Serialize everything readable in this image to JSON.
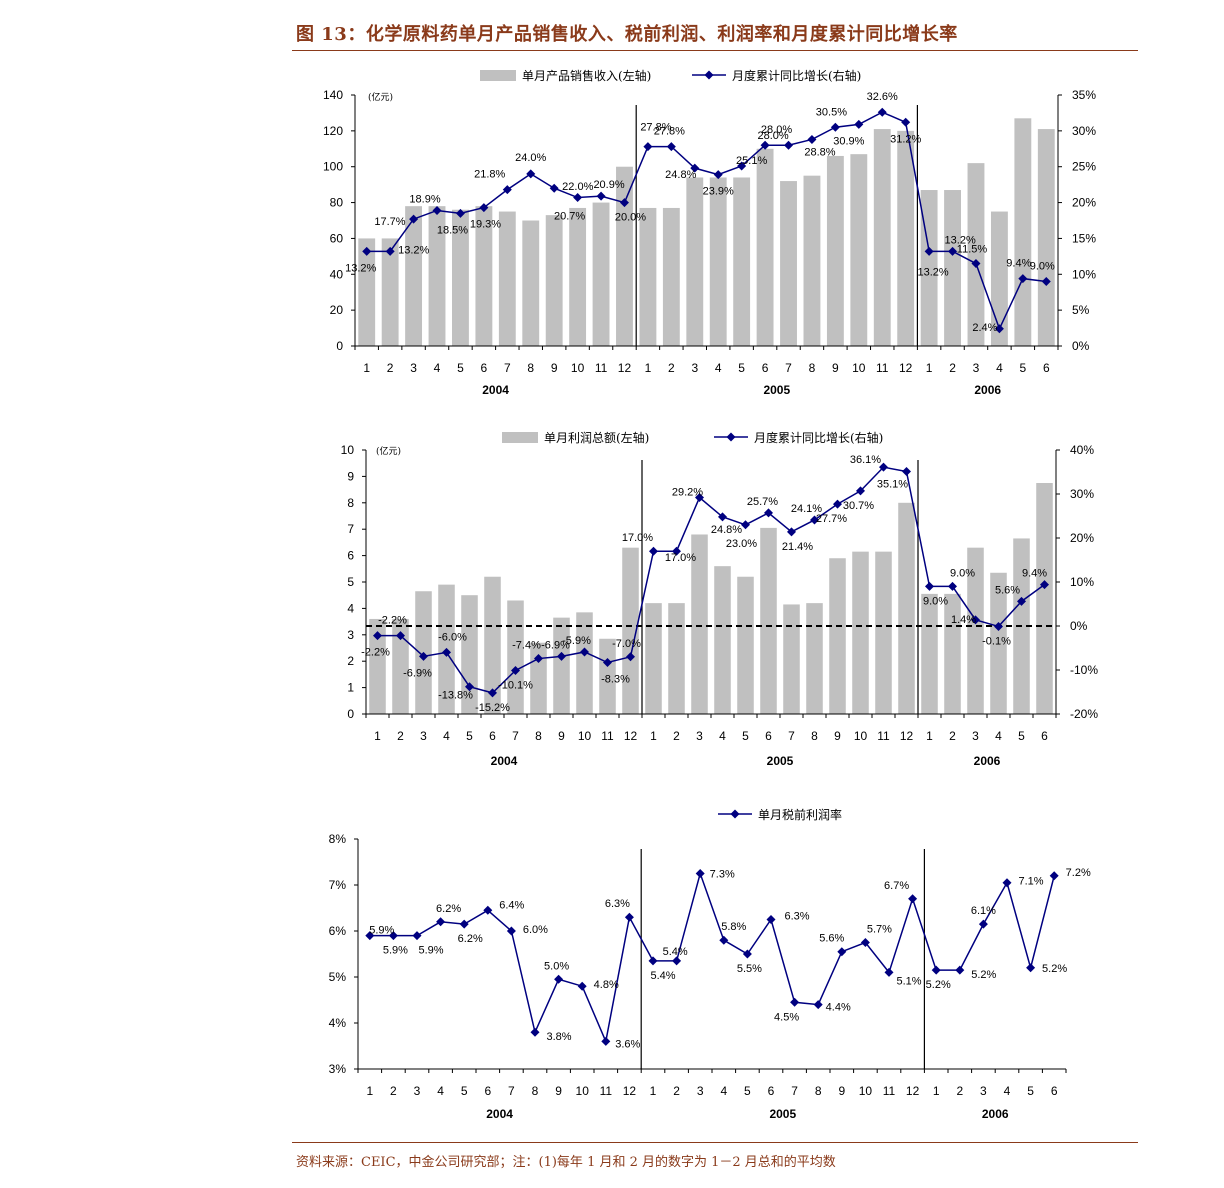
{
  "figure": {
    "title": "图 13：化学原料药单月产品销售收入、税前利润、利润率和月度累计同比增长率",
    "source": "资料来源：CEIC，中金公司研究部；注：(1)每年 1 月和 2 月的数字为 1－2 月总和的平均数"
  },
  "colors": {
    "bar": "#c0c0c0",
    "line": "#000080",
    "title": "#8a3a1a",
    "axis": "#000000"
  },
  "chart_data": [
    {
      "type": "bar",
      "unit_label": "(亿元)",
      "legend": [
        "单月产品销售收入(左轴)",
        "月度累计同比增长(右轴)"
      ],
      "categories": [
        "1",
        "2",
        "3",
        "4",
        "5",
        "6",
        "7",
        "8",
        "9",
        "10",
        "11",
        "12",
        "1",
        "2",
        "3",
        "4",
        "5",
        "6",
        "7",
        "8",
        "9",
        "10",
        "11",
        "12",
        "1",
        "2",
        "3",
        "4",
        "5",
        "6"
      ],
      "years": [
        {
          "label": "2004",
          "start": 0,
          "end": 11
        },
        {
          "label": "2005",
          "start": 12,
          "end": 23
        },
        {
          "label": "2006",
          "start": 24,
          "end": 29
        }
      ],
      "separators_after": [
        11,
        23
      ],
      "series": [
        {
          "name": "单月产品销售收入(左轴)",
          "type": "bar",
          "axis": "left",
          "values": [
            60,
            60,
            78,
            78,
            76,
            78,
            75,
            70,
            73,
            77,
            80,
            100,
            77,
            77,
            94,
            94,
            94,
            110,
            92,
            95,
            106,
            107,
            121,
            120,
            87,
            87,
            102,
            75,
            127,
            121
          ]
        },
        {
          "name": "月度累计同比增长(右轴)",
          "type": "line",
          "axis": "right",
          "values": [
            13.2,
            13.2,
            17.7,
            18.9,
            18.5,
            19.3,
            21.8,
            24.0,
            22.0,
            20.7,
            20.9,
            20.0,
            27.8,
            27.8,
            24.8,
            23.9,
            25.1,
            28.0,
            28.0,
            28.8,
            30.5,
            30.9,
            32.6,
            31.2,
            13.2,
            13.2,
            11.5,
            2.4,
            9.4,
            9.0
          ],
          "labels": [
            "13.2%",
            "13.2%",
            "17.7%",
            "18.9%",
            "18.5%",
            "19.3%",
            "21.8%",
            "24.0%",
            "22.0%",
            "20.7%",
            "20.9%",
            "20.0%",
            "27.8%",
            "27.8%",
            "24.8%",
            "23.9%",
            "25.1%",
            "28.0%",
            "28.0%",
            "28.8%",
            "30.5%",
            "30.9%",
            "32.6%",
            "31.2%",
            "13.2%",
            "13.2%",
            "11.5%",
            "2.4%",
            "9.4%",
            "9.0%"
          ]
        }
      ],
      "yleft": {
        "min": 0,
        "max": 140,
        "step": 20,
        "ticks": [
          "0",
          "20",
          "40",
          "60",
          "80",
          "100",
          "120",
          "140"
        ]
      },
      "yright": {
        "min": 0,
        "max": 35,
        "step": 5,
        "ticks": [
          "0%",
          "5%",
          "10%",
          "15%",
          "20%",
          "25%",
          "30%",
          "35%"
        ]
      }
    },
    {
      "type": "bar",
      "unit_label": "(亿元)",
      "legend": [
        "单月利润总额(左轴)",
        "月度累计同比增长(右轴)"
      ],
      "categories": [
        "1",
        "2",
        "3",
        "4",
        "5",
        "6",
        "7",
        "8",
        "9",
        "10",
        "11",
        "12",
        "1",
        "2",
        "3",
        "4",
        "5",
        "6",
        "7",
        "8",
        "9",
        "10",
        "11",
        "12",
        "1",
        "2",
        "3",
        "4",
        "5",
        "6"
      ],
      "years": [
        {
          "label": "2004",
          "start": 0,
          "end": 11
        },
        {
          "label": "2005",
          "start": 12,
          "end": 23
        },
        {
          "label": "2006",
          "start": 24,
          "end": 29
        }
      ],
      "separators_after": [
        11,
        23
      ],
      "zero_line": true,
      "series": [
        {
          "name": "单月利润总额(左轴)",
          "type": "bar",
          "axis": "left",
          "values": [
            3.6,
            3.6,
            4.65,
            4.9,
            4.5,
            5.2,
            4.3,
            2.7,
            3.65,
            3.85,
            2.85,
            6.3,
            4.2,
            4.2,
            6.8,
            5.6,
            5.2,
            7.05,
            4.15,
            4.2,
            5.9,
            6.15,
            6.15,
            8.0,
            4.55,
            4.55,
            6.3,
            5.35,
            6.65,
            8.75
          ]
        },
        {
          "name": "月度累计同比增长(右轴)",
          "type": "line",
          "axis": "right",
          "values": [
            -2.2,
            -2.2,
            -6.9,
            -6.0,
            -13.8,
            -15.2,
            -10.1,
            -7.4,
            -6.9,
            -5.9,
            -8.3,
            -7.0,
            17.0,
            17.0,
            29.2,
            24.8,
            23.0,
            25.7,
            21.4,
            24.1,
            27.7,
            30.7,
            36.1,
            35.1,
            9.0,
            9.0,
            1.4,
            -0.1,
            5.6,
            9.4
          ],
          "labels": [
            "-2.2%",
            "-2.2%",
            "-6.9%",
            "-6.0%",
            "-13.8%",
            "-15.2%",
            "-10.1%",
            "-7.4%",
            "-6.9%",
            "-5.9%",
            "-8.3%",
            "-7.0%",
            "17.0%",
            "17.0%",
            "29.2%",
            "24.8%",
            "23.0%",
            "25.7%",
            "21.4%",
            "24.1%",
            "27.7%",
            "30.7%",
            "36.1%",
            "35.1%",
            "9.0%",
            "9.0%",
            "1.4%",
            "-0.1%",
            "5.6%",
            "9.4%"
          ]
        }
      ],
      "yleft": {
        "min": 0,
        "max": 10,
        "step": 1,
        "ticks": [
          "0",
          "1",
          "2",
          "3",
          "4",
          "5",
          "6",
          "7",
          "8",
          "9",
          "10"
        ]
      },
      "yright": {
        "min": -20,
        "max": 40,
        "step": 10,
        "ticks": [
          "-20%",
          "-10%",
          "0%",
          "10%",
          "20%",
          "30%",
          "40%"
        ]
      }
    },
    {
      "type": "line",
      "legend": [
        "单月税前利润率"
      ],
      "categories": [
        "1",
        "2",
        "3",
        "4",
        "5",
        "6",
        "7",
        "8",
        "9",
        "10",
        "11",
        "12",
        "1",
        "2",
        "3",
        "4",
        "5",
        "6",
        "7",
        "8",
        "9",
        "10",
        "11",
        "12",
        "1",
        "2",
        "3",
        "4",
        "5",
        "6"
      ],
      "years": [
        {
          "label": "2004",
          "start": 0,
          "end": 11
        },
        {
          "label": "2005",
          "start": 12,
          "end": 23
        },
        {
          "label": "2006",
          "start": 24,
          "end": 29
        }
      ],
      "separators_after": [
        11,
        23
      ],
      "series": [
        {
          "name": "单月税前利润率",
          "type": "line",
          "axis": "left",
          "values": [
            5.9,
            5.9,
            5.9,
            6.2,
            6.15,
            6.45,
            6.0,
            3.8,
            4.95,
            4.8,
            3.6,
            6.3,
            5.35,
            5.35,
            7.25,
            5.8,
            5.5,
            6.25,
            4.45,
            4.4,
            5.55,
            5.75,
            5.1,
            6.7,
            5.15,
            5.15,
            6.15,
            7.05,
            5.2,
            7.2
          ],
          "labels": [
            "5.9%",
            "5.9%",
            "5.9%",
            "6.2%",
            "6.2%",
            "6.4%",
            "6.0%",
            "3.8%",
            "5.0%",
            "4.8%",
            "3.6%",
            "6.3%",
            "5.4%",
            "5.4%",
            "7.3%",
            "5.8%",
            "5.5%",
            "6.3%",
            "4.5%",
            "4.4%",
            "5.6%",
            "5.7%",
            "5.1%",
            "6.7%",
            "5.2%",
            "5.2%",
            "6.1%",
            "7.1%",
            "5.2%",
            "7.2%"
          ]
        }
      ],
      "yleft": {
        "min": 3,
        "max": 8,
        "step": 1,
        "ticks": [
          "3%",
          "4%",
          "5%",
          "6%",
          "7%",
          "8%"
        ]
      }
    }
  ]
}
